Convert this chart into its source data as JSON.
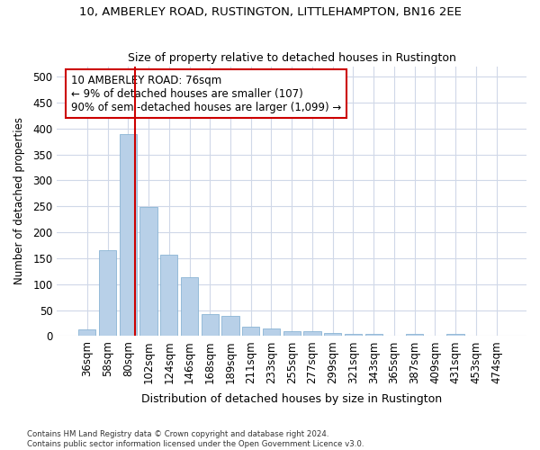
{
  "title1": "10, AMBERLEY ROAD, RUSTINGTON, LITTLEHAMPTON, BN16 2EE",
  "title2": "Size of property relative to detached houses in Rustington",
  "xlabel": "Distribution of detached houses by size in Rustington",
  "ylabel": "Number of detached properties",
  "categories": [
    "36sqm",
    "58sqm",
    "80sqm",
    "102sqm",
    "124sqm",
    "146sqm",
    "168sqm",
    "189sqm",
    "211sqm",
    "233sqm",
    "255sqm",
    "277sqm",
    "299sqm",
    "321sqm",
    "343sqm",
    "365sqm",
    "387sqm",
    "409sqm",
    "431sqm",
    "453sqm",
    "474sqm"
  ],
  "values": [
    13,
    165,
    390,
    248,
    157,
    113,
    43,
    38,
    18,
    15,
    10,
    9,
    6,
    4,
    4,
    0,
    5,
    0,
    5,
    0,
    0
  ],
  "bar_color": "#b8d0e8",
  "bar_edge_color": "#8ab4d4",
  "vline_color": "#cc0000",
  "annotation_text": "10 AMBERLEY ROAD: 76sqm\n← 9% of detached houses are smaller (107)\n90% of semi-detached houses are larger (1,099) →",
  "annotation_box_color": "#ffffff",
  "annotation_box_edge_color": "#cc0000",
  "ylim": [
    0,
    520
  ],
  "yticks": [
    0,
    50,
    100,
    150,
    200,
    250,
    300,
    350,
    400,
    450,
    500
  ],
  "footer1": "Contains HM Land Registry data © Crown copyright and database right 2024.",
  "footer2": "Contains public sector information licensed under the Open Government Licence v3.0.",
  "bg_color": "#ffffff",
  "plot_bg_color": "#ffffff",
  "grid_color": "#d0d8e8"
}
